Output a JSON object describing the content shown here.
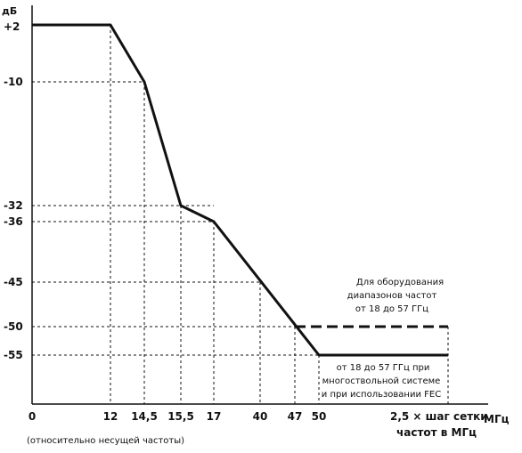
{
  "chart_data": {
    "type": "line",
    "y_unit": "дБ",
    "x_unit": "МГц",
    "x_footnote": "(относительно несущей частоты)",
    "y_ticks": [
      "+2",
      "-10",
      "-32",
      "-36",
      "-45",
      "-50",
      "-55"
    ],
    "x_ticks": [
      "0",
      "12",
      "14,5",
      "15,5",
      "17",
      "40",
      "47",
      "50"
    ],
    "x_last_tick_line1": "2,5 × шаг сетки",
    "x_last_tick_line2": "частот в МГц",
    "series": [
      {
        "name": "",
        "style": "solid",
        "points": [
          {
            "x": "0",
            "y": 2
          },
          {
            "x": "12",
            "y": 2
          },
          {
            "x": "14,5",
            "y": -10
          },
          {
            "x": "15,5",
            "y": -32
          },
          {
            "x": "17",
            "y": -36
          },
          {
            "x": "50",
            "y": -55
          },
          {
            "x": "2,5 × шаг сетки частот в МГц",
            "y": -55
          }
        ]
      },
      {
        "name": "",
        "style": "dashed",
        "points": [
          {
            "x": "47",
            "y": -50
          },
          {
            "x": "2,5 × шаг сетки частот в МГц",
            "y": -50
          }
        ]
      }
    ],
    "annotations": {
      "upper": [
        "Для оборудования",
        "диапазонов частот",
        "от 18 до 57 ГГц"
      ],
      "lower": [
        "от 18 до 57 ГГц при",
        "многоствольной системе",
        "и при использовании FEC"
      ]
    },
    "grid": "dashed guide lines to each breakpoint"
  }
}
